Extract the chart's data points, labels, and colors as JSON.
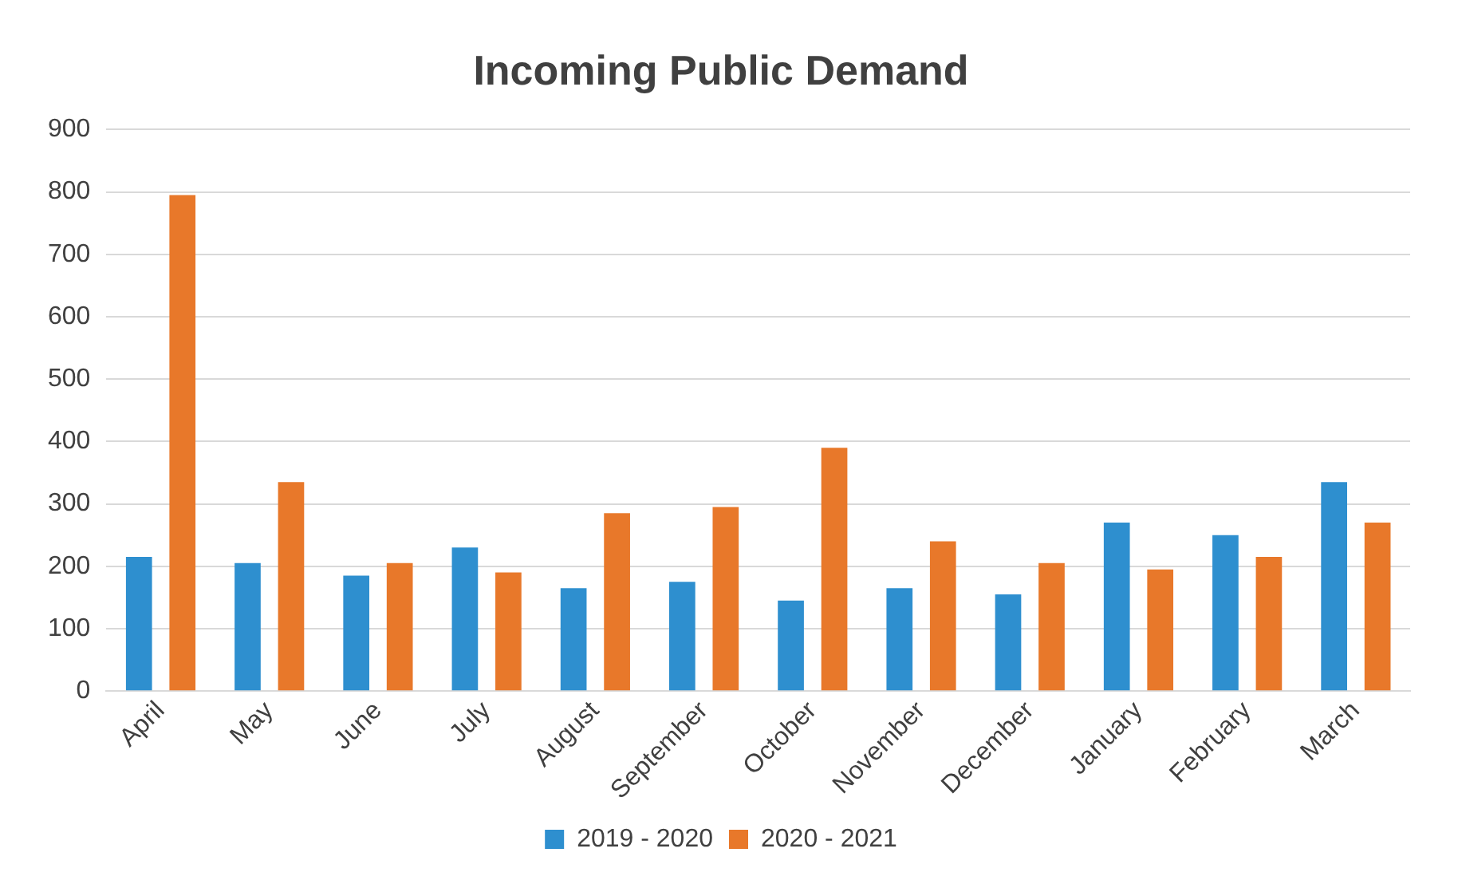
{
  "chart_data": {
    "type": "bar",
    "title": "Incoming Public Demand",
    "categories": [
      "April",
      "May",
      "June",
      "July",
      "August",
      "September",
      "October",
      "November",
      "December",
      "January",
      "February",
      "March"
    ],
    "series": [
      {
        "name": "2019 - 2020",
        "color": "#2e8fcf",
        "values": [
          215,
          205,
          185,
          230,
          165,
          175,
          145,
          165,
          155,
          270,
          250,
          335
        ]
      },
      {
        "name": "2020 - 2021",
        "color": "#e8782a",
        "values": [
          795,
          335,
          205,
          190,
          285,
          295,
          390,
          240,
          205,
          195,
          215,
          270
        ]
      }
    ],
    "ylim": [
      0,
      900
    ],
    "yticks": [
      0,
      100,
      200,
      300,
      400,
      500,
      600,
      700,
      800,
      900
    ],
    "grid": "y",
    "legend": "bottom"
  }
}
